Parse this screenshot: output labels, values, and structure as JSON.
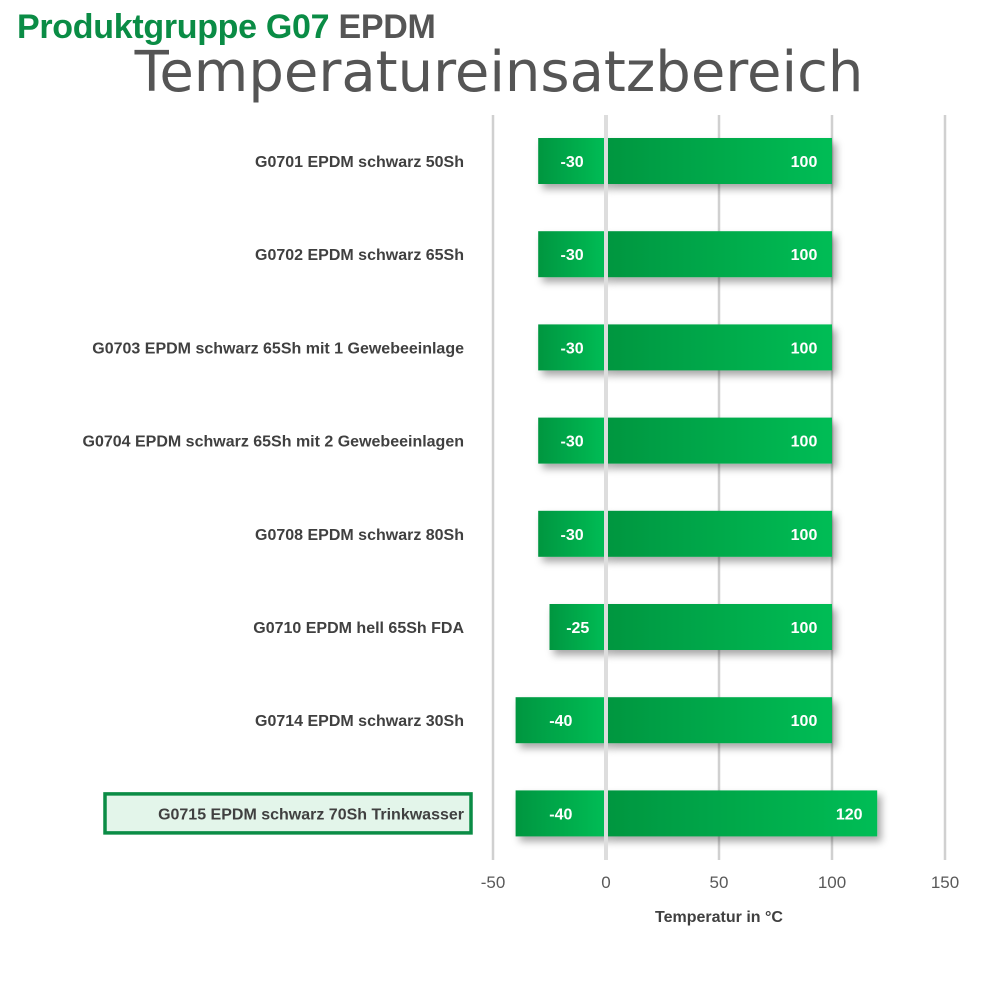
{
  "header": {
    "group_prefix": "Produktgruppe G07",
    "group_material": "EPDM",
    "title": "Temperatureinsatzbereich"
  },
  "colors": {
    "brand_green": "#0a8c45",
    "bar_green_dark": "#009640",
    "bar_green_light": "#00bd55",
    "highlight_fill": "#e3f5ea",
    "grid": "#d0d0d0",
    "zero_line": "#dddddd"
  },
  "chart_data": {
    "type": "bar",
    "orientation": "horizontal",
    "stacked_range": true,
    "categories": [
      "G0701 EPDM schwarz 50Sh",
      "G0702 EPDM schwarz 65Sh",
      "G0703 EPDM schwarz 65Sh mit 1 Gewebeeinlage",
      "G0704 EPDM schwarz 65Sh mit 2 Gewebeeinlagen",
      "G0708 EPDM schwarz 80Sh",
      "G0710 EPDM hell 65Sh FDA",
      "G0714 EPDM schwarz 30Sh",
      "G0715 EPDM schwarz 70Sh Trinkwasser"
    ],
    "series": [
      {
        "values": [
          -30,
          -30,
          -30,
          -30,
          -30,
          -25,
          -40,
          -40
        ]
      },
      {
        "values": [
          100,
          100,
          100,
          100,
          100,
          100,
          100,
          120
        ]
      }
    ],
    "highlighted_category": "G0715 EPDM schwarz 70Sh Trinkwasser",
    "xlabel": "Temperatur in °C",
    "xlim": [
      -50,
      150
    ],
    "xticks": [
      -50,
      0,
      50,
      100,
      150
    ],
    "tick_labels": [
      "-50",
      "0",
      "50",
      "100",
      "150"
    ],
    "grid": "vertical"
  }
}
